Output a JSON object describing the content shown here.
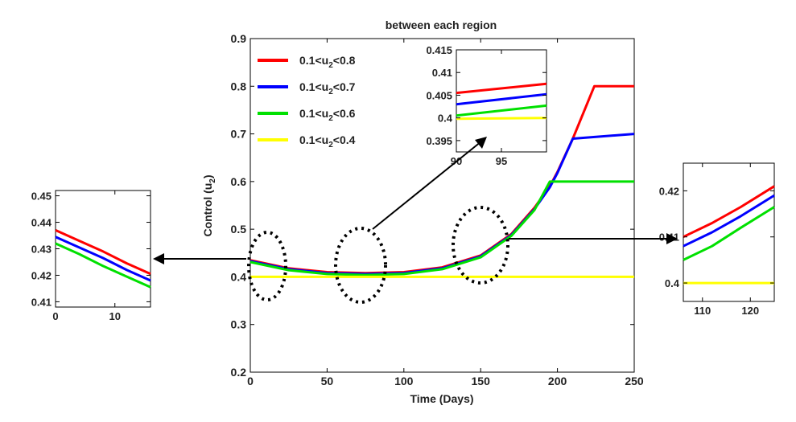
{
  "chart_data": [
    {
      "type": "line",
      "title": "between each region",
      "xlabel": "Time (Days)",
      "ylabel_main": "Control (u",
      "ylabel_sub": "2",
      "ylabel_close": ")",
      "xlim": [
        0,
        250
      ],
      "ylim": [
        0.2,
        0.9
      ],
      "xticks": [
        "0",
        "50",
        "100",
        "150",
        "200",
        "250"
      ],
      "yticks": [
        "0.2",
        "0.3",
        "0.4",
        "0.5",
        "0.6",
        "0.7",
        "0.8",
        "0.9"
      ],
      "legend_position": "top-left",
      "series": [
        {
          "name": "0.1<u2<0.8",
          "legend_pre": "0.1<u",
          "legend_sub": "2",
          "legend_post": "<0.8",
          "color": "#ff0000",
          "x": [
            0,
            25,
            50,
            75,
            100,
            125,
            150,
            170,
            185,
            195,
            200,
            210,
            224,
            250
          ],
          "values": [
            0.435,
            0.418,
            0.41,
            0.408,
            0.41,
            0.42,
            0.445,
            0.49,
            0.545,
            0.59,
            0.62,
            0.69,
            0.8,
            0.8
          ]
        },
        {
          "name": "0.1<u2<0.7",
          "legend_pre": "0.1<u",
          "legend_sub": "2",
          "legend_post": "<0.7",
          "color": "#0000ff",
          "x": [
            0,
            25,
            50,
            75,
            100,
            125,
            150,
            170,
            185,
            195,
            200,
            210,
            250
          ],
          "values": [
            0.433,
            0.416,
            0.408,
            0.406,
            0.408,
            0.418,
            0.443,
            0.488,
            0.542,
            0.588,
            0.618,
            0.69,
            0.7
          ]
        },
        {
          "name": "0.1<u2<0.6",
          "legend_pre": "0.1<u",
          "legend_sub": "2",
          "legend_post": "<0.6",
          "color": "#00e000",
          "x": [
            0,
            25,
            50,
            75,
            100,
            125,
            150,
            170,
            185,
            195,
            250
          ],
          "values": [
            0.431,
            0.414,
            0.406,
            0.404,
            0.406,
            0.416,
            0.441,
            0.486,
            0.54,
            0.6,
            0.6
          ]
        },
        {
          "name": "0.1<u2<0.4",
          "legend_pre": "0.1<u",
          "legend_sub": "2",
          "legend_post": "<0.4",
          "color": "#ffff00",
          "x": [
            0,
            250
          ],
          "values": [
            0.4,
            0.4
          ]
        }
      ]
    },
    {
      "type": "line",
      "xlim": [
        90,
        100
      ],
      "ylim": [
        0.3925,
        0.415
      ],
      "xticks": [
        "90",
        "95"
      ],
      "yticks": [
        "0.395",
        "0.4",
        "0.405",
        "0.41",
        "0.415"
      ],
      "series": [
        {
          "color": "#ff0000",
          "x": [
            90,
            100
          ],
          "values": [
            0.4055,
            0.4075
          ]
        },
        {
          "color": "#0000ff",
          "x": [
            90,
            100
          ],
          "values": [
            0.403,
            0.4052
          ]
        },
        {
          "color": "#00e000",
          "x": [
            90,
            100
          ],
          "values": [
            0.4005,
            0.4027
          ]
        },
        {
          "color": "#ffff00",
          "x": [
            90,
            100
          ],
          "values": [
            0.3998,
            0.4
          ]
        }
      ]
    },
    {
      "type": "line",
      "xlim": [
        0,
        16
      ],
      "ylim": [
        0.408,
        0.452
      ],
      "xticks": [
        "0",
        "10"
      ],
      "yticks": [
        "0.41",
        "0.42",
        "0.43",
        "0.44",
        "0.45"
      ],
      "series": [
        {
          "color": "#ff0000",
          "x": [
            0,
            4,
            8,
            12,
            16
          ],
          "values": [
            0.437,
            0.433,
            0.429,
            0.4245,
            0.4205
          ]
        },
        {
          "color": "#0000ff",
          "x": [
            0,
            4,
            8,
            12,
            16
          ],
          "values": [
            0.4345,
            0.4305,
            0.4265,
            0.422,
            0.418
          ]
        },
        {
          "color": "#00e000",
          "x": [
            0,
            4,
            8,
            12,
            16
          ],
          "values": [
            0.432,
            0.428,
            0.4235,
            0.4195,
            0.4155
          ]
        }
      ]
    },
    {
      "type": "line",
      "xlim": [
        106,
        125
      ],
      "ylim": [
        0.396,
        0.426
      ],
      "xticks": [
        "110",
        "120"
      ],
      "yticks": [
        "0.4",
        "0.41",
        "0.42"
      ],
      "series": [
        {
          "color": "#ff0000",
          "x": [
            106,
            112,
            118,
            125
          ],
          "values": [
            0.41,
            0.413,
            0.4165,
            0.421
          ]
        },
        {
          "color": "#0000ff",
          "x": [
            106,
            112,
            118,
            125
          ],
          "values": [
            0.408,
            0.411,
            0.4145,
            0.419
          ]
        },
        {
          "color": "#00e000",
          "x": [
            106,
            112,
            118,
            125
          ],
          "values": [
            0.405,
            0.408,
            0.412,
            0.4165
          ]
        },
        {
          "color": "#ffff00",
          "x": [
            106,
            125
          ],
          "values": [
            0.4,
            0.4
          ]
        }
      ]
    }
  ]
}
